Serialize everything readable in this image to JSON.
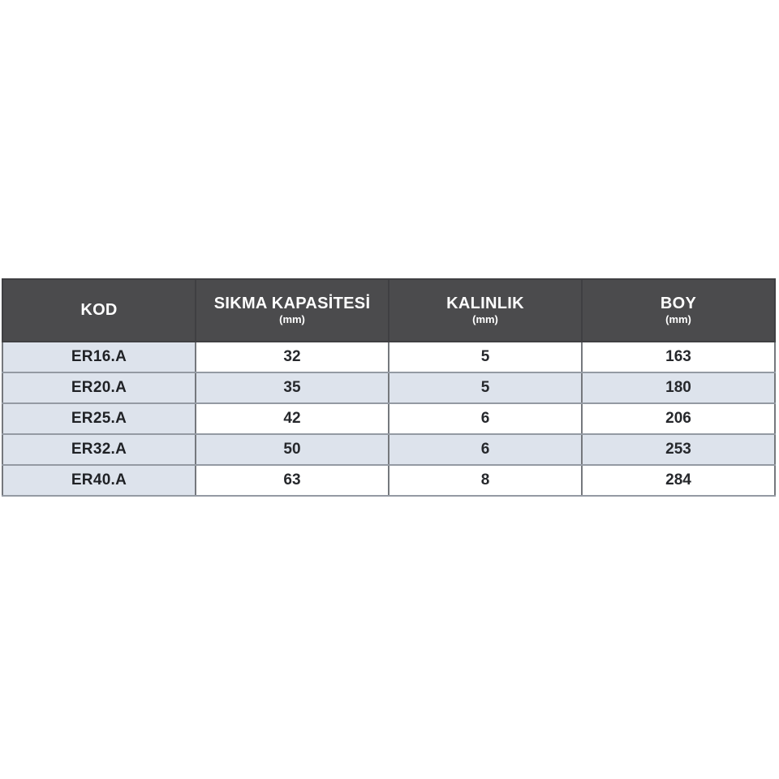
{
  "colors": {
    "header-bg": "#4b4b4d",
    "header-text": "#ffffff",
    "stripe-bg": "#dde3ec",
    "row-bg": "#ffffff",
    "cell-text": "#26282c",
    "code-text": "#1f2125",
    "v-border": "#75787d",
    "h-border": "#949aa3",
    "outer-border": "#9ba1a9"
  },
  "table": {
    "columns": [
      {
        "label": "KOD",
        "unit": ""
      },
      {
        "label": "SIKMA KAPASİTESİ",
        "unit": "(mm)"
      },
      {
        "label": "KALINLIK",
        "unit": "(mm)"
      },
      {
        "label": "BOY",
        "unit": "(mm)"
      }
    ],
    "rows": [
      {
        "cells": [
          "ER16.A",
          "32",
          "5",
          "163"
        ]
      },
      {
        "cells": [
          "ER20.A",
          "35",
          "5",
          "180"
        ]
      },
      {
        "cells": [
          "ER25.A",
          "42",
          "6",
          "206"
        ]
      },
      {
        "cells": [
          "ER32.A",
          "50",
          "6",
          "253"
        ]
      },
      {
        "cells": [
          "ER40.A",
          "63",
          "8",
          "284"
        ]
      }
    ]
  }
}
